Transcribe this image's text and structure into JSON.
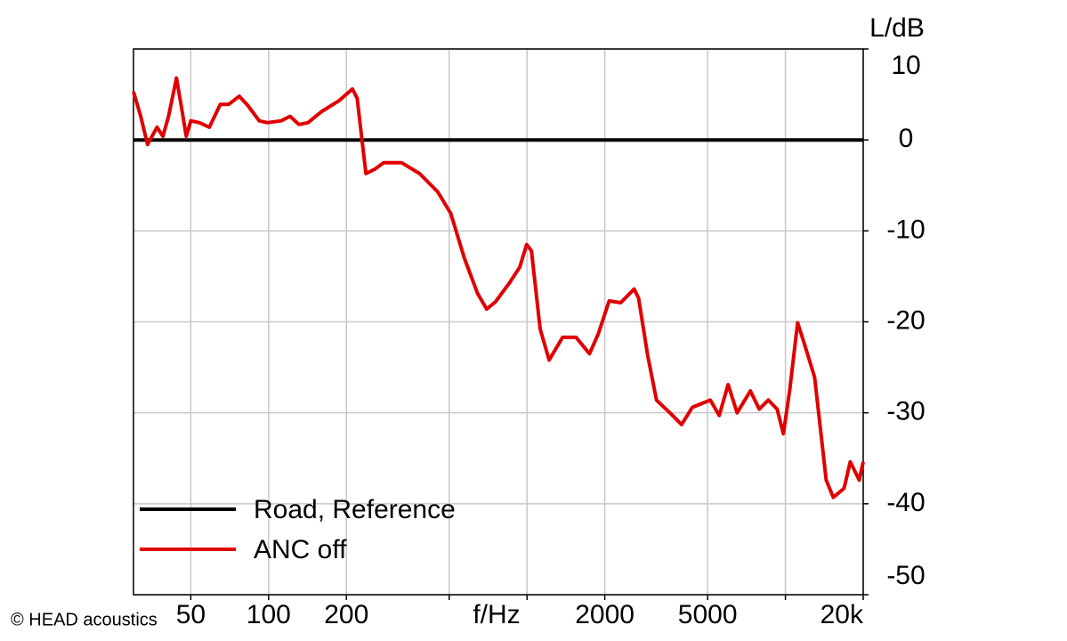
{
  "chart_data": {
    "type": "line",
    "x_label": "f/Hz",
    "y_label": "L/dB",
    "watermark": "© HEAD acoustics",
    "xscale": "log",
    "xlim": [
      30,
      20000
    ],
    "ylim": [
      -50,
      10
    ],
    "xticks": [
      50,
      100,
      200,
      2000,
      5000,
      {
        "value": 20000,
        "label": "20k"
      }
    ],
    "xgrid": [
      500,
      1000,
      10000
    ],
    "yticks": [
      10,
      0,
      -10,
      -20,
      -30,
      -40,
      -50
    ],
    "grid": true,
    "legend": "lower left",
    "series": [
      {
        "name": "Road, Reference",
        "color": "#000000",
        "x": [
          30,
          20000
        ],
        "values": [
          0,
          0
        ]
      },
      {
        "name": "ANC off",
        "color": "#e00000",
        "x": [
          30,
          32,
          34,
          37,
          39,
          41,
          44,
          46,
          48,
          50,
          54,
          59,
          65,
          70,
          77,
          83,
          92,
          99,
          112,
          121,
          131,
          142,
          160,
          187,
          211,
          220,
          238,
          258,
          279,
          327,
          384,
          451,
          507,
          572,
          644,
          698,
          755,
          851,
          937,
          997,
          1040,
          1124,
          1218,
          1373,
          1548,
          1745,
          1889,
          2079,
          2304,
          2598,
          2703,
          2930,
          3170,
          3574,
          3963,
          4365,
          5120,
          5543,
          6001,
          6500,
          7320,
          7924,
          8580,
          9290,
          9820,
          10380,
          11150,
          11780,
          12970,
          14380,
          15320,
          16860,
          17820,
          19300,
          20000
        ],
        "values": [
          5.3,
          2.6,
          -0.5,
          1.4,
          0.4,
          2.6,
          6.8,
          3.6,
          0.4,
          2.1,
          1.9,
          1.4,
          3.9,
          3.9,
          4.8,
          3.8,
          2.1,
          1.9,
          2.1,
          2.6,
          1.7,
          1.9,
          3.1,
          4.3,
          5.6,
          4.6,
          -3.7,
          -3.2,
          -2.5,
          -2.5,
          -3.7,
          -5.7,
          -8.1,
          -13.0,
          -16.9,
          -18.6,
          -17.8,
          -15.8,
          -14.0,
          -11.5,
          -12.2,
          -20.8,
          -24.2,
          -21.7,
          -21.7,
          -23.5,
          -21.3,
          -17.7,
          -17.9,
          -16.4,
          -17.4,
          -23.7,
          -28.6,
          -30.0,
          -31.3,
          -29.4,
          -28.6,
          -30.3,
          -26.9,
          -30.0,
          -27.6,
          -29.6,
          -28.6,
          -29.6,
          -32.3,
          -27.6,
          -20.1,
          -22.2,
          -26.1,
          -37.4,
          -39.3,
          -38.3,
          -35.4,
          -37.4,
          -35.4
        ]
      }
    ]
  }
}
